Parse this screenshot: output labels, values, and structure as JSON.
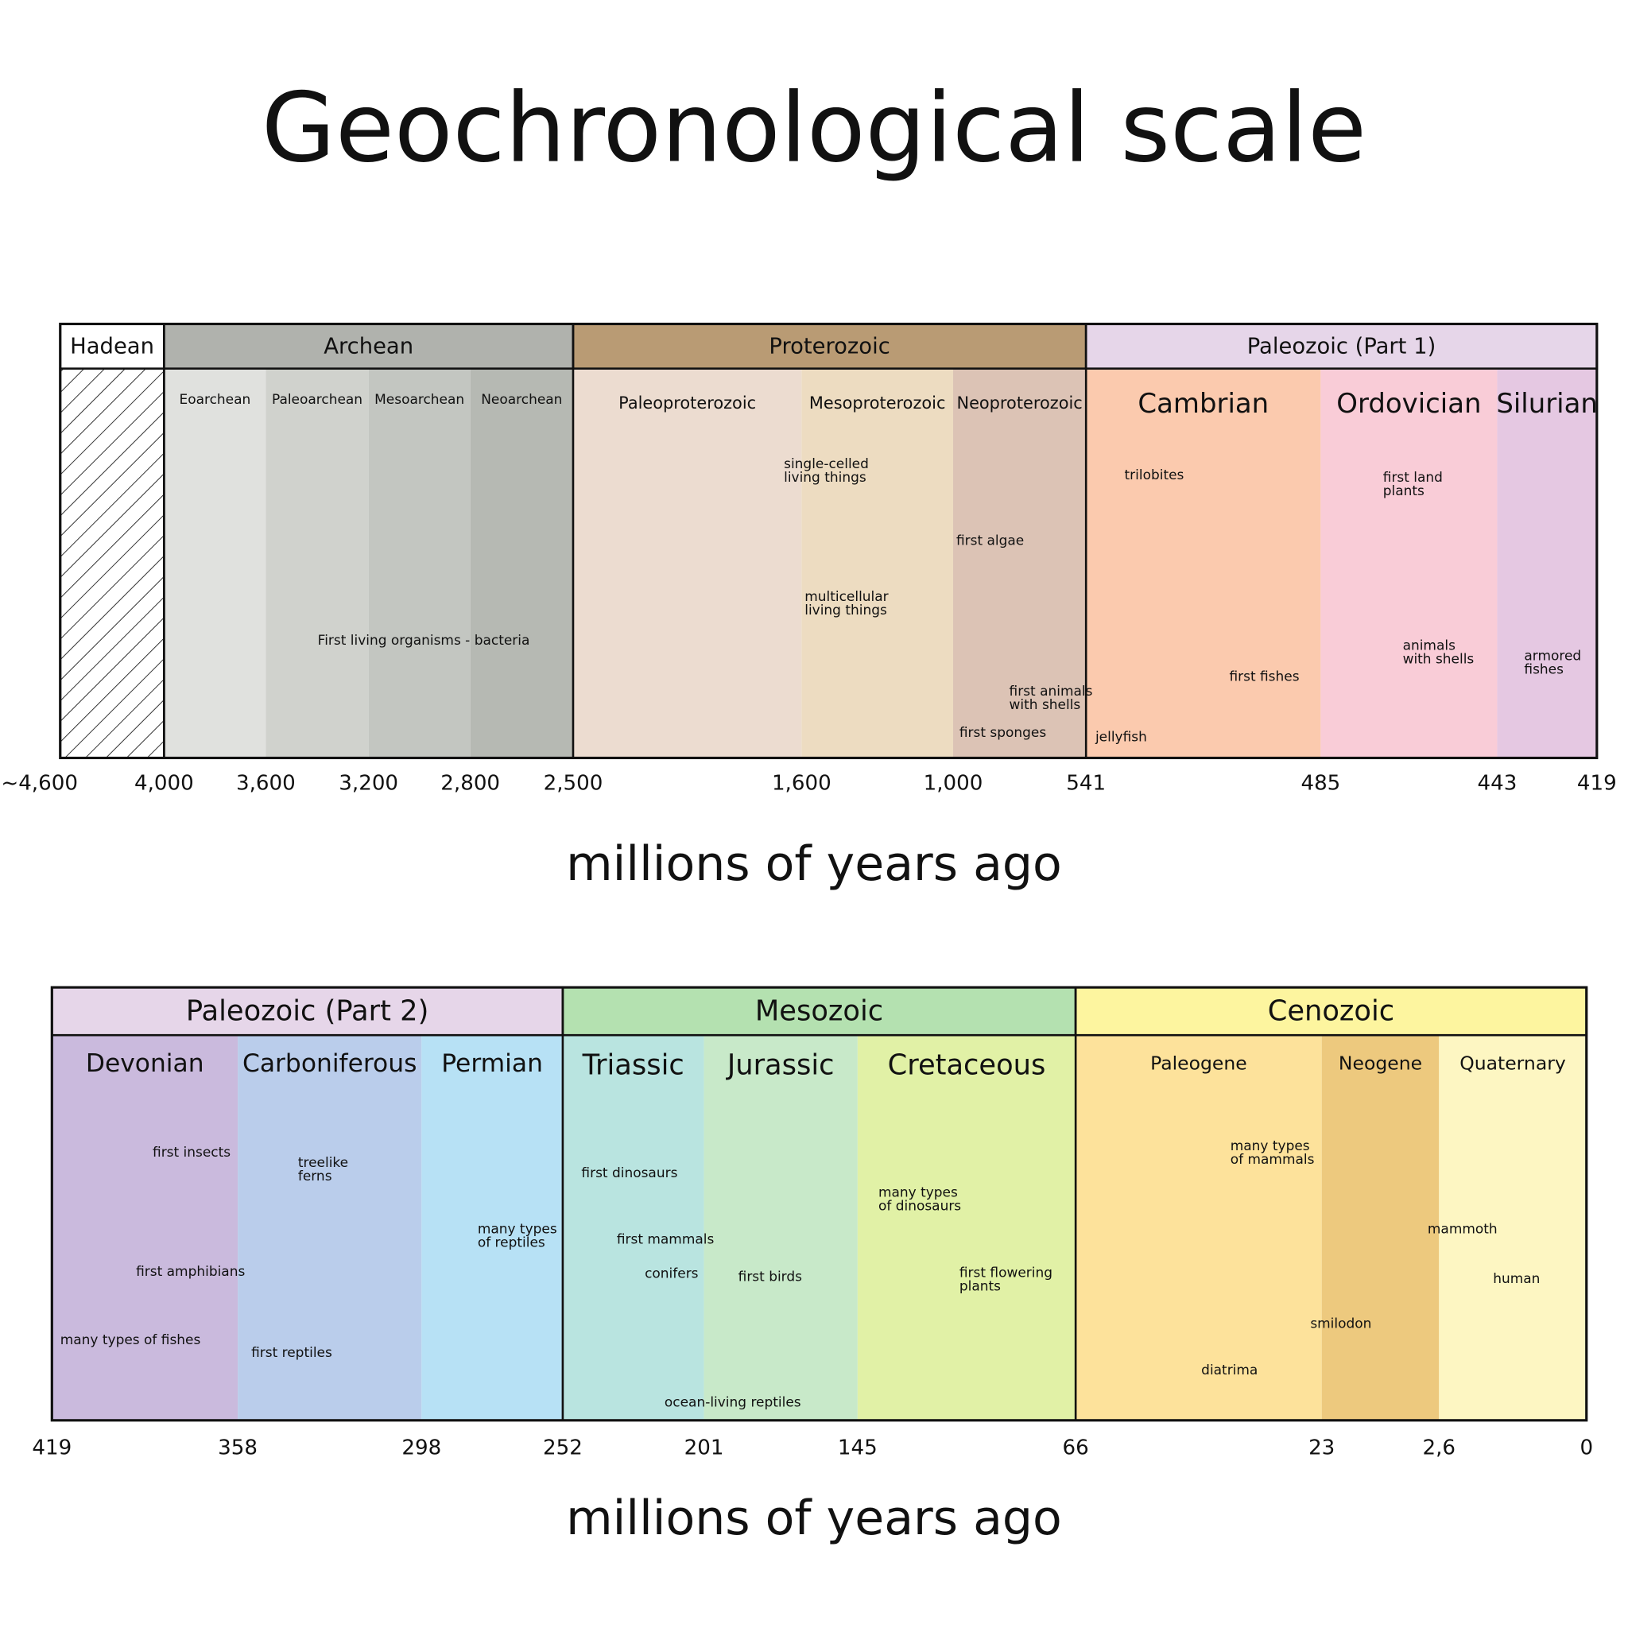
{
  "title": "Geochronological scale",
  "rows": [
    {
      "eons": [
        {
          "label": "Hadean",
          "color": "#ffffff"
        },
        {
          "label": "Archean",
          "color": "#b0b2ad"
        },
        {
          "label": "Proterozoic",
          "color": "#b99b74"
        },
        {
          "label": "Paleozoic  (Part 1)",
          "color": "#e6d6e9"
        }
      ],
      "periods": [
        {
          "label": "Eoarchean",
          "color": "#e0e1de"
        },
        {
          "label": "Paleoarchean",
          "color": "#d0d2cd"
        },
        {
          "label": "Mesoarchean",
          "color": "#c3c6c1"
        },
        {
          "label": "Neoarchean",
          "color": "#b6b9b3"
        },
        {
          "label": "Paleoproterozoic",
          "color": "#ecdcd0"
        },
        {
          "label": "Mesoproterozoic",
          "color": "#eddcc1"
        },
        {
          "label": "Neoproterozoic",
          "color": "#dcc3b5"
        },
        {
          "label": "Cambrian",
          "color": "#fbcaae"
        },
        {
          "label": "Ordovician",
          "color": "#f9ccd7"
        },
        {
          "label": "Silurian",
          "color": "#e5c8e2"
        }
      ],
      "ticks": [
        "~4,600",
        "4,000",
        "3,600",
        "3,200",
        "2,800",
        "2,500",
        "1,600",
        "1,000",
        "541",
        "485",
        "443",
        "419"
      ],
      "axis_label": "millions of years ago",
      "notes": [
        [
          "single-celled",
          "living things"
        ],
        [
          "multicellular",
          "living things"
        ],
        [
          "first algae"
        ],
        [
          "first sponges"
        ],
        [
          "First living organisms - bacteria"
        ],
        [
          "first animals",
          "with shells"
        ],
        [
          "trilobites"
        ],
        [
          "first fishes"
        ],
        [
          "jellyfish"
        ],
        [
          "first land",
          "plants"
        ],
        [
          "animals",
          "with shells"
        ],
        [
          "armored",
          "fishes"
        ]
      ]
    },
    {
      "eons": [
        {
          "label": "Paleozoic  (Part 2)",
          "color": "#e6d6e9"
        },
        {
          "label": "Mesozoic",
          "color": "#b4e1b0"
        },
        {
          "label": "Cenozoic",
          "color": "#fdf59f"
        }
      ],
      "periods": [
        {
          "label": "Devonian",
          "color": "#cabadd"
        },
        {
          "label": "Carboniferous",
          "color": "#bacdeb"
        },
        {
          "label": "Permian",
          "color": "#b7e1f5"
        },
        {
          "label": "Triassic",
          "color": "#b9e4e0"
        },
        {
          "label": "Jurassic",
          "color": "#c8e9c9"
        },
        {
          "label": "Cretaceous",
          "color": "#e1f1a6"
        },
        {
          "label": "Paleogene",
          "color": "#fde29b"
        },
        {
          "label": "Neogene",
          "color": "#edc97e"
        },
        {
          "label": "Quaternary",
          "color": "#fdf6c2"
        }
      ],
      "ticks": [
        "419",
        "358",
        "298",
        "252",
        "201",
        "145",
        "66",
        "23",
        "2,6",
        "0"
      ],
      "axis_label": "millions of years ago",
      "notes": [
        [
          "first insects"
        ],
        [
          "first amphibians"
        ],
        [
          "many types of fishes"
        ],
        [
          "treelike",
          "ferns"
        ],
        [
          "first reptiles"
        ],
        [
          "many types",
          "of reptiles"
        ],
        [
          "first dinosaurs"
        ],
        [
          "first mammals"
        ],
        [
          "conifers"
        ],
        [
          "first birds"
        ],
        [
          "ocean-living reptiles"
        ],
        [
          "many types",
          "of dinosaurs"
        ],
        [
          "first flowering",
          "plants"
        ],
        [
          "many types",
          "of mammals"
        ],
        [
          "mammoth"
        ],
        [
          "human"
        ],
        [
          "smilodon"
        ],
        [
          "diatrima"
        ]
      ]
    }
  ]
}
